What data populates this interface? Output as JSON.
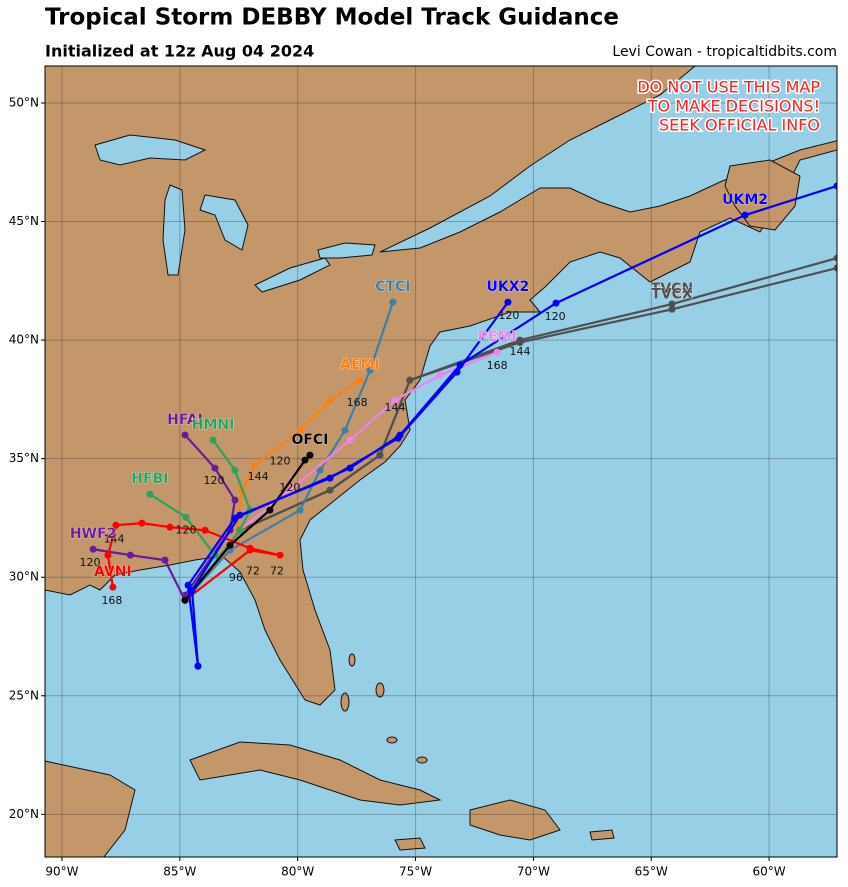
{
  "header": {
    "title": "Tropical Storm DEBBY Model Track Guidance",
    "subtitle": "Initialized at 12z Aug 04 2024",
    "credit": "Levi Cowan - tropicaltidbits.com"
  },
  "warning": [
    "DO NOT USE THIS MAP",
    "TO MAKE DECISIONS!",
    "SEEK OFFICIAL INFO"
  ],
  "map": {
    "lonlim": [
      -90.72,
      -57.12
    ],
    "latlim": [
      18.2,
      51.56
    ],
    "lonticks": [
      {
        "value": -90,
        "label": "90°W"
      },
      {
        "value": -85,
        "label": "85°W"
      },
      {
        "value": -80,
        "label": "80°W"
      },
      {
        "value": -75,
        "label": "75°W"
      },
      {
        "value": -70,
        "label": "70°W"
      },
      {
        "value": -65,
        "label": "65°W"
      },
      {
        "value": -60,
        "label": "60°W"
      }
    ],
    "latticks": [
      {
        "value": 20,
        "label": "20°N"
      },
      {
        "value": 25,
        "label": "25°N"
      },
      {
        "value": 30,
        "label": "30°N"
      },
      {
        "value": 35,
        "label": "35°N"
      },
      {
        "value": 40,
        "label": "40°N"
      },
      {
        "value": 45,
        "label": "45°N"
      },
      {
        "value": 50,
        "label": "50°N"
      }
    ],
    "grid": true,
    "tracks": [
      {
        "name": "TVCN",
        "color": "#505050",
        "lon": [
          -84.78,
          -82.45,
          -78.63,
          -76.51,
          -75.24,
          -70.57,
          -64.12,
          -57.12
        ],
        "lat": [
          29.03,
          31.98,
          33.67,
          35.15,
          38.31,
          40.0,
          41.52,
          43.46
        ]
      },
      {
        "name": "TVCX",
        "color": "#505050",
        "lon": [
          -84.78,
          -82.45,
          -78.63,
          -76.51,
          -75.24,
          -70.57,
          -64.12,
          -57.12
        ],
        "lat": [
          29.03,
          31.98,
          33.67,
          35.15,
          38.31,
          39.9,
          41.3,
          43.04
        ]
      },
      {
        "name": "CTCI",
        "color": "#3e7fa8",
        "lon": [
          -84.78,
          -82.87,
          -79.9,
          -79.05,
          -77.99,
          -76.93,
          -75.96
        ],
        "lat": [
          29.03,
          31.14,
          32.83,
          34.51,
          36.2,
          38.73,
          41.6
        ]
      },
      {
        "name": "AEMI",
        "color": "#ff7f0e",
        "lon": [
          -84.78,
          -82.66,
          -82.36,
          -81.81,
          -79.9,
          -78.63,
          -77.36
        ],
        "lat": [
          29.03,
          31.56,
          33.67,
          34.73,
          36.2,
          37.47,
          38.31
        ]
      },
      {
        "name": "PEMI",
        "color": "#ee82ee",
        "lon": [
          -84.78,
          -82.45,
          -80.33,
          -77.78,
          -75.87,
          -73.96,
          -71.54
        ],
        "lat": [
          29.03,
          31.98,
          33.67,
          35.78,
          37.47,
          38.52,
          39.49
        ]
      },
      {
        "name": "HFAI",
        "color": "#6a1b9a",
        "lon": [
          -84.78,
          -82.87,
          -82.66,
          -83.51,
          -84.78
        ],
        "lat": [
          29.24,
          31.98,
          33.25,
          34.6,
          36.0
        ]
      },
      {
        "name": "HMNI",
        "color": "#2ca25f",
        "lon": [
          -84.78,
          -82.45,
          -82.02,
          -82.66,
          -83.59
        ],
        "lat": [
          29.03,
          31.98,
          32.83,
          34.51,
          35.78
        ]
      },
      {
        "name": "HFBI",
        "color": "#2ca25f",
        "lon": [
          -84.78,
          -83.51,
          -84.74,
          -86.27
        ],
        "lat": [
          29.03,
          30.93,
          32.53,
          33.5
        ]
      },
      {
        "name": "HWF2",
        "color": "#6a1b9a",
        "lon": [
          -84.78,
          -85.63,
          -87.1,
          -88.68
        ],
        "lat": [
          29.03,
          30.72,
          30.93,
          31.18
        ]
      },
      {
        "name": "AVNI",
        "color": "#ff0000",
        "lon": [
          -84.78,
          -82.02,
          -80.75,
          -82.02,
          -83.93,
          -85.42,
          -86.61,
          -87.71,
          -88.05,
          -87.84
        ],
        "lat": [
          29.03,
          31.14,
          30.93,
          31.22,
          31.98,
          32.11,
          32.28,
          32.19,
          30.93,
          29.58
        ]
      },
      {
        "name": "OFCI",
        "color": "#000000",
        "lon": [
          -84.78,
          -82.87,
          -81.18,
          -79.69,
          -79.48
        ],
        "lat": [
          29.03,
          31.35,
          32.83,
          34.94,
          35.15
        ]
      },
      {
        "name": "UKX2",
        "color": "#0000ff",
        "lon": [
          -84.23,
          -84.48,
          -82.45,
          -78.63,
          -75.74,
          -73.24,
          -71.08
        ],
        "lat": [
          26.25,
          29.45,
          32.62,
          34.18,
          35.86,
          38.65,
          41.6
        ]
      },
      {
        "name": "UKM2",
        "color": "#0000ff",
        "lon": [
          -84.23,
          -84.65,
          -82.66,
          -77.78,
          -75.66,
          -73.11,
          -69.04,
          -61.02,
          -57.12
        ],
        "lat": [
          26.25,
          29.66,
          32.49,
          34.6,
          35.99,
          38.95,
          41.56,
          45.27,
          46.5
        ]
      }
    ],
    "hour_labels": [
      {
        "hour": 168,
        "lon": -87.88,
        "lat": 28.99
      },
      {
        "hour": 144,
        "lon": -87.79,
        "lat": 31.6
      },
      {
        "hour": 120,
        "lon": -88.81,
        "lat": 30.59
      },
      {
        "hour": 120,
        "lon": -84.74,
        "lat": 31.98
      },
      {
        "hour": 120,
        "lon": -83.55,
        "lat": 34.05
      },
      {
        "hour": 120,
        "lon": -80.75,
        "lat": 34.89
      },
      {
        "hour": 144,
        "lon": -81.68,
        "lat": 34.22
      },
      {
        "hour": 120,
        "lon": -80.33,
        "lat": 33.76
      },
      {
        "hour": 96,
        "lon": -82.62,
        "lat": 29.96
      },
      {
        "hour": 72,
        "lon": -81.9,
        "lat": 30.25
      },
      {
        "hour": 72,
        "lon": -80.88,
        "lat": 30.25
      },
      {
        "hour": 168,
        "lon": -77.48,
        "lat": 37.34
      },
      {
        "hour": 144,
        "lon": -75.87,
        "lat": 37.13
      },
      {
        "hour": 120,
        "lon": -71.04,
        "lat": 41.01
      },
      {
        "hour": 120,
        "lon": -69.08,
        "lat": 40.97
      },
      {
        "hour": 144,
        "lon": -70.57,
        "lat": 39.49
      },
      {
        "hour": 168,
        "lon": -71.54,
        "lat": 38.9
      }
    ]
  }
}
